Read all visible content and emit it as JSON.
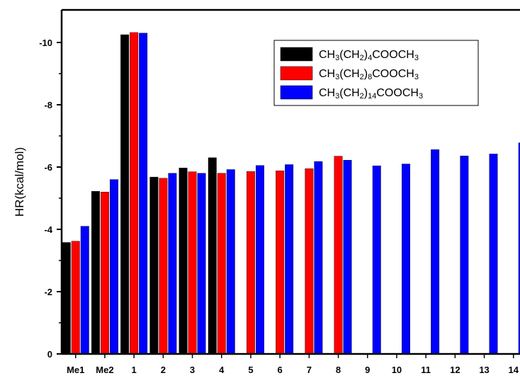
{
  "chart_data": {
    "type": "bar",
    "ylabel": "HR(kcal/mol)",
    "y_inverted": true,
    "ylim": [
      0,
      -11
    ],
    "yticks": [
      "0",
      "-2",
      "-4",
      "-6",
      "-8",
      "-10"
    ],
    "categories": [
      "Me1",
      "Me2",
      "1",
      "2",
      "3",
      "4",
      "5",
      "6",
      "7",
      "8",
      "9",
      "10",
      "11",
      "12",
      "13",
      "14"
    ],
    "series": [
      {
        "name": "CH3(CH2)4COOCH3",
        "legend": {
          "a": "CH",
          "b": "3",
          "c": "(CH",
          "d": "2",
          "e": ")",
          "f": "4",
          "g": "COOCH",
          "h": "3"
        },
        "color": "#000000",
        "values": [
          -3.58,
          -5.22,
          -10.25,
          -5.68,
          -5.97,
          -6.3,
          null,
          null,
          null,
          null,
          null,
          null,
          null,
          null,
          null,
          null
        ]
      },
      {
        "name": "CH3(CH2)8COOCH3",
        "legend": {
          "a": "CH",
          "b": "3",
          "c": "(CH",
          "d": "2",
          "e": ")",
          "f": "8",
          "g": "COOCH",
          "h": "3"
        },
        "color": "#ff0000",
        "values": [
          -3.62,
          -5.2,
          -10.32,
          -5.64,
          -5.85,
          -5.8,
          -5.86,
          -5.88,
          -5.95,
          -6.35,
          null,
          null,
          null,
          null,
          null,
          null
        ]
      },
      {
        "name": "CH3(CH2)14COOCH3",
        "legend": {
          "a": "CH",
          "b": "3",
          "c": "(CH",
          "d": "2",
          "e": ")",
          "f": "14",
          "g": "COOCH",
          "h": "3"
        },
        "color": "#0000ff",
        "values": [
          -4.1,
          -5.6,
          -10.3,
          -5.8,
          -5.8,
          -5.92,
          -6.05,
          -6.08,
          -6.18,
          -6.22,
          -6.04,
          -6.1,
          -6.56,
          -6.36,
          -6.42,
          -6.78
        ]
      }
    ]
  }
}
